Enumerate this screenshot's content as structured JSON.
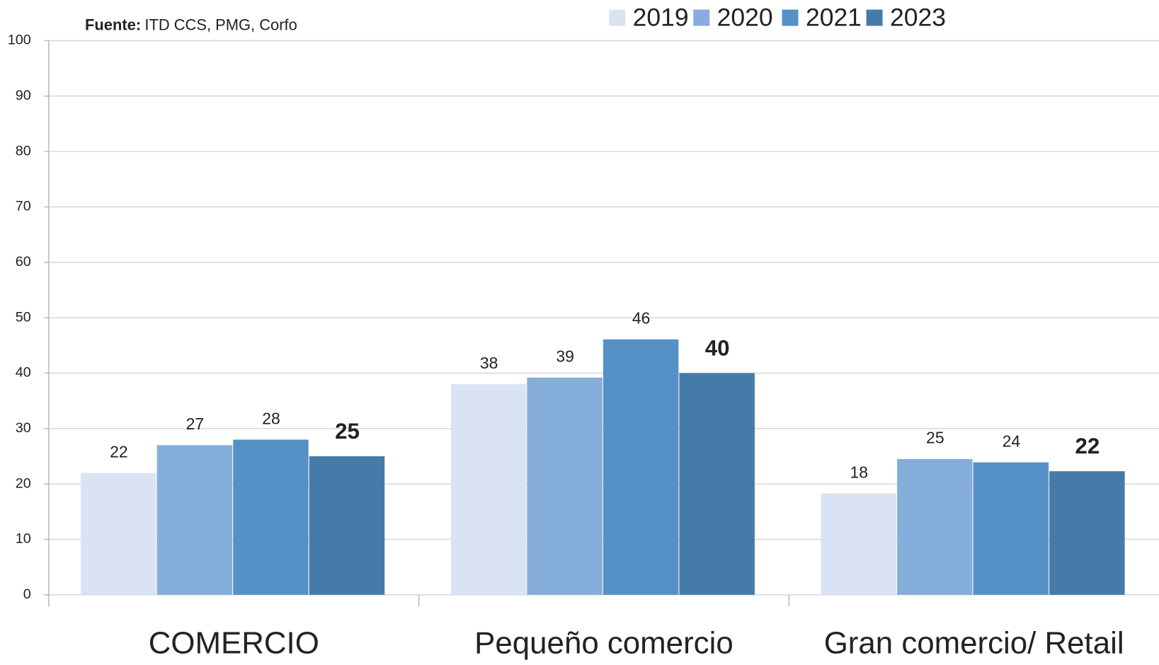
{
  "chart_data": {
    "type": "bar",
    "source_label": "Fuente:",
    "source": "ITD CCS, PMG, Corfo",
    "categories": [
      "COMERCIO",
      "Pequeño comercio",
      "Gran comercio/ Retail"
    ],
    "series": [
      {
        "name": "2019",
        "color": "#dae3f3",
        "values": [
          22,
          38,
          18.3
        ],
        "value_labels": [
          "22",
          "38",
          "18"
        ]
      },
      {
        "name": "2020",
        "color": "#85aedb",
        "values": [
          27,
          39.2,
          24.5
        ],
        "value_labels": [
          "27",
          "39",
          "25"
        ]
      },
      {
        "name": "2021",
        "color": "#5591c7",
        "values": [
          28,
          46.1,
          23.9
        ],
        "value_labels": [
          "28",
          "46",
          "24"
        ]
      },
      {
        "name": "2023",
        "color": "#467aa8",
        "values": [
          25,
          40,
          22.3
        ],
        "value_labels": [
          "25",
          "40",
          "22"
        ],
        "bold_labels": true
      }
    ],
    "ylim": [
      0,
      100
    ],
    "yticks": [
      0,
      10,
      20,
      30,
      40,
      50,
      60,
      70,
      80,
      90,
      100
    ],
    "grid": true,
    "legend": "top"
  }
}
